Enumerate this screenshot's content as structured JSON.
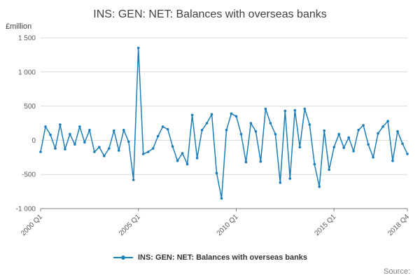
{
  "title": "INS: GEN: NET: Balances with overseas banks",
  "y_axis_unit": "£million",
  "legend_label": "INS: GEN: NET: Balances with overseas banks",
  "source_label": "Source:",
  "colors": {
    "line": "#1b7db9",
    "grid": "#d9d9d9",
    "axis": "#808080",
    "tick_text": "#595959"
  },
  "chart_data": {
    "type": "line",
    "title": "INS: GEN: NET: Balances with overseas banks",
    "ylabel": "£million",
    "ylim": [
      -1000,
      1500
    ],
    "y_ticks": [
      -1000,
      -500,
      0,
      500,
      1000,
      1500
    ],
    "y_tick_labels": [
      "-1 000",
      "-500",
      "0",
      "500",
      "1 000",
      "1 500"
    ],
    "x_tick_labels": [
      "2000 Q1",
      "2005 Q1",
      "2010 Q1",
      "2015 Q1",
      "2018 Q4"
    ],
    "x_tick_indices": [
      0,
      20,
      40,
      60,
      75
    ],
    "x_start": "2000 Q1",
    "x_end": "2018 Q4",
    "frequency": "quarterly",
    "grid": "horizontal",
    "legend_position": "bottom",
    "series": [
      {
        "name": "INS: GEN: NET: Balances with overseas banks",
        "values": [
          -170,
          200,
          80,
          -120,
          230,
          -130,
          90,
          -60,
          200,
          -30,
          150,
          -170,
          -100,
          -230,
          -120,
          140,
          -150,
          150,
          -20,
          -580,
          1350,
          -200,
          -170,
          -120,
          60,
          200,
          160,
          -90,
          -300,
          -190,
          -350,
          370,
          -260,
          150,
          250,
          380,
          -480,
          -850,
          150,
          390,
          350,
          90,
          -320,
          250,
          130,
          -310,
          460,
          250,
          90,
          -620,
          430,
          -560,
          440,
          -100,
          460,
          230,
          -350,
          -680,
          140,
          -430,
          -100,
          90,
          -110,
          40,
          -160,
          150,
          220,
          -60,
          -250,
          100,
          200,
          280,
          -300,
          130,
          -50,
          -200
        ]
      }
    ]
  }
}
